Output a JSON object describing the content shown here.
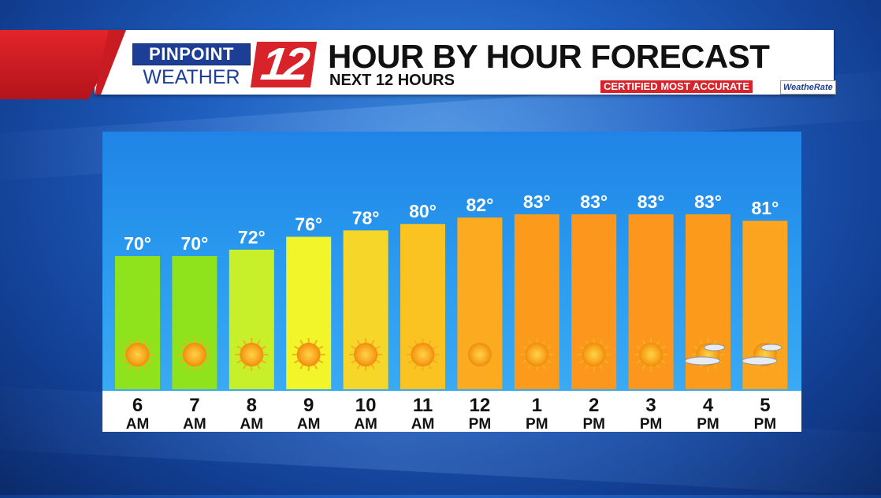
{
  "header": {
    "logo_top": "PINPOINT",
    "logo_bottom": "WEATHER",
    "logo_number": "12",
    "title": "HOUR BY HOUR FORECAST",
    "subtitle": "NEXT 12 HOURS",
    "certified": "CERTIFIED MOST ACCURATE",
    "weatherate": "WeatheRate"
  },
  "colors": {
    "brand_red": "#d8232a",
    "brand_blue": "#1c3f95"
  },
  "chart_data": {
    "type": "bar",
    "title": "HOUR BY HOUR FORECAST",
    "subtitle": "NEXT 12 HOURS",
    "categories": [
      {
        "hour": "6",
        "period": "AM"
      },
      {
        "hour": "7",
        "period": "AM"
      },
      {
        "hour": "8",
        "period": "AM"
      },
      {
        "hour": "9",
        "period": "AM"
      },
      {
        "hour": "10",
        "period": "AM"
      },
      {
        "hour": "11",
        "period": "AM"
      },
      {
        "hour": "12",
        "period": "PM"
      },
      {
        "hour": "1",
        "period": "PM"
      },
      {
        "hour": "2",
        "period": "PM"
      },
      {
        "hour": "3",
        "period": "PM"
      },
      {
        "hour": "4",
        "period": "PM"
      },
      {
        "hour": "5",
        "period": "PM"
      }
    ],
    "values": [
      70,
      70,
      72,
      76,
      78,
      80,
      82,
      83,
      83,
      83,
      83,
      81
    ],
    "value_labels": [
      "70°",
      "70°",
      "72°",
      "76°",
      "78°",
      "80°",
      "82°",
      "83°",
      "83°",
      "83°",
      "83°",
      "81°"
    ],
    "conditions": [
      "sunny-icon",
      "sunny-icon",
      "sunny-icon",
      "sunny-icon",
      "sunny-icon",
      "sunny-icon",
      "sunny-icon",
      "sunny-icon",
      "sunny-icon",
      "sunny-icon",
      "partly-cloudy-icon",
      "partly-cloudy-icon"
    ],
    "bar_colors": [
      "#8ee31c",
      "#8ee31c",
      "#c8f02a",
      "#f2f52a",
      "#f7d62a",
      "#fbc322",
      "#fcab20",
      "#fc9a1c",
      "#fc961c",
      "#fc961c",
      "#fc9a1c",
      "#fca41f"
    ],
    "grid": false,
    "legend": "none"
  }
}
